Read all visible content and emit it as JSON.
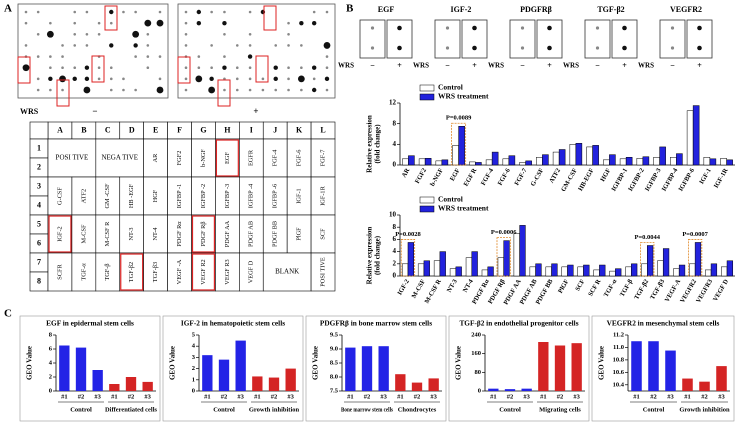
{
  "panel_a": {
    "label": "A",
    "wrs": "WRS",
    "minus": "−",
    "plus": "+"
  },
  "table": {
    "columns": [
      "A",
      "B",
      "C",
      "D",
      "E",
      "F",
      "G",
      "H",
      "I",
      "J",
      "K",
      "L"
    ],
    "rows": [
      "1",
      "2",
      "3",
      "4",
      "5",
      "6",
      "7",
      "8"
    ],
    "row_pairs": [
      [
        "POSI TIVE",
        null,
        "NEGA TIVE",
        null,
        "AR",
        "FGF2",
        "b-NGF",
        {
          "text": "EGF",
          "highlight": true
        },
        "EGFR",
        "FGF-4",
        "FGF-6",
        "FGF-7"
      ],
      [
        "G-CSF",
        "ATF2",
        "GM -CSF",
        "HB -EGF",
        "HGF",
        "IGFBP -1",
        "IGFBP -2",
        "IGFBP -3",
        "IGFBP -4",
        "IGFBP -6",
        "IGF-1",
        "IGF-1R"
      ],
      [
        {
          "text": "IGF-2",
          "highlight": true
        },
        "M-CSF",
        "M-CSF R",
        "NT-3",
        "NT-4",
        "PDGF Rα",
        {
          "text": "PDGF Rβ",
          "highlight": true
        },
        "PDGF AA",
        "PDGF AB",
        "PDGF BB",
        "PlGF",
        "SCF"
      ],
      [
        "SCFR",
        "TGF-α",
        "TGF-β",
        {
          "text": "TGF-β2",
          "highlight": true
        },
        "TGF-β3",
        "VEGF -A",
        {
          "text": "VEGF R2",
          "highlight": true
        },
        "VEGF R3",
        "VEGF D",
        "BLANK",
        null,
        "POSI TIVE"
      ]
    ]
  },
  "panel_b": {
    "label": "B",
    "wrs": "WRS",
    "minus": "−",
    "plus": "+",
    "blots": [
      "EGF",
      "IGF-2",
      "PDGFRβ",
      "TGF-β2",
      "VEGFR2"
    ]
  },
  "panel_c": {
    "label": "C"
  },
  "chart_data": [
    {
      "type": "bar",
      "ylabel": [
        "Relative expression",
        "(fold change)"
      ],
      "categories": [
        "AR",
        "FGF2",
        "b-NGF",
        "EGF",
        "EGF R",
        "FGF-4",
        "FGF-6",
        "FGF-7",
        "G-CSF",
        "ATF2",
        "GM-CSF",
        "HB-EGF",
        "HGF",
        "IGFBP-1",
        "IGFBP-2",
        "IGFBP-3",
        "IGFBP-4",
        "IGFBP-6",
        "IGF-1",
        "IGF-1R"
      ],
      "series": [
        {
          "name": "Control",
          "color": "#ffffff",
          "values": [
            1.2,
            1.2,
            0.8,
            3.8,
            0.6,
            1.0,
            1.2,
            0.5,
            1.5,
            2.5,
            4.0,
            3.5,
            1.0,
            1.2,
            1.3,
            1.5,
            1.5,
            10.5,
            1.5,
            1.3
          ]
        },
        {
          "name": "WRS treatment",
          "color": "#2222dd",
          "values": [
            1.8,
            1.3,
            1.0,
            7.5,
            0.5,
            2.5,
            1.8,
            0.8,
            2.0,
            3.0,
            4.2,
            3.8,
            2.0,
            1.5,
            1.6,
            3.5,
            2.2,
            11.5,
            1.2,
            1.0
          ]
        }
      ],
      "ylim": [
        0,
        12
      ],
      "yticks": [
        0,
        4,
        8,
        12
      ],
      "annotations": [
        {
          "text": "P=0.0089",
          "category": "EGF"
        }
      ]
    },
    {
      "type": "bar",
      "ylabel": [
        "Relative expression",
        "(fold change)"
      ],
      "categories": [
        "IGF-2",
        "M-CSF",
        "M-CSF R",
        "NT-3",
        "NT-4",
        "PDGF Rα",
        "PDGF Rβ",
        "PDGF AA",
        "PDGF AB",
        "PDGF BB",
        "PlGF",
        "SCF",
        "SCF R",
        "TGF-α",
        "TGF-β",
        "TGF-β2",
        "TGF-β3",
        "VEGF-A",
        "VEGFR2",
        "VEGFR3",
        "VEGF D"
      ],
      "series": [
        {
          "name": "Control",
          "color": "#ffffff",
          "values": [
            2.0,
            2.0,
            2.5,
            1.2,
            3.0,
            1.0,
            3.0,
            7.0,
            1.5,
            1.5,
            1.5,
            1.5,
            1.0,
            0.8,
            1.5,
            2.0,
            2.5,
            1.2,
            2.0,
            1.0,
            1.5
          ]
        },
        {
          "name": "WRS treatment",
          "color": "#2222dd",
          "values": [
            5.5,
            2.5,
            4.0,
            1.5,
            4.0,
            1.5,
            5.8,
            8.3,
            2.0,
            2.0,
            1.8,
            1.8,
            1.8,
            1.2,
            2.0,
            5.0,
            4.5,
            1.8,
            5.5,
            2.0,
            2.5
          ]
        }
      ],
      "ylim": [
        0,
        10
      ],
      "yticks": [
        0,
        2,
        4,
        6,
        8,
        10
      ],
      "annotations": [
        {
          "text": "P=0.0028",
          "category": "IGF-2"
        },
        {
          "text": "P=0.0006",
          "category": "PDGF Rβ"
        },
        {
          "text": "P=0.0044",
          "category": "TGF-β2"
        },
        {
          "text": "P=0.0007",
          "category": "VEGFR2"
        }
      ]
    },
    {
      "type": "geo",
      "title": "EGF in epidermal stem cells",
      "ylabel": "GEO Value",
      "ylim": [
        0,
        8
      ],
      "yticks": [
        0,
        2,
        4,
        6,
        8
      ],
      "series": [
        {
          "name": "Control",
          "color": "#2323e6",
          "categories": [
            "#1",
            "#2",
            "#3"
          ],
          "values": [
            6.5,
            6.2,
            3.0
          ]
        },
        {
          "name": "Differentiated cells",
          "color": "#d42424",
          "categories": [
            "#1",
            "#2",
            "#3"
          ],
          "values": [
            1.0,
            2.0,
            1.3
          ]
        }
      ]
    },
    {
      "type": "geo",
      "title": "IGF-2 in hematopoietic stem cells",
      "ylabel": "GEO Value",
      "ylim": [
        0,
        5
      ],
      "yticks": [
        0,
        1,
        2,
        3,
        4,
        5
      ],
      "series": [
        {
          "name": "Control",
          "color": "#2323e6",
          "categories": [
            "#1",
            "#2",
            "#3"
          ],
          "values": [
            3.2,
            2.8,
            4.5
          ]
        },
        {
          "name": "Growth inhibition",
          "color": "#d42424",
          "categories": [
            "#1",
            "#2",
            "#3"
          ],
          "values": [
            1.3,
            1.2,
            2.0
          ]
        }
      ]
    },
    {
      "type": "geo",
      "title": "PDGFRβ in bone marrow stem cells",
      "ylabel": "GEO Value",
      "ylim": [
        7.5,
        9.5
      ],
      "yticks": [
        7.5,
        {
          "value": 8,
          "label": "8.0"
        },
        8.5,
        {
          "value": 9,
          "label": "9.0"
        },
        9.5
      ],
      "series": [
        {
          "name": "Bone marrow stem cells",
          "color": "#2323e6",
          "categories": [
            "#1",
            "#2",
            "#3"
          ],
          "values": [
            9.05,
            9.1,
            9.1
          ]
        },
        {
          "name": "Chondrocytes",
          "color": "#d42424",
          "categories": [
            "#1",
            "#2",
            "#3"
          ],
          "values": [
            8.1,
            7.8,
            7.95
          ]
        }
      ]
    },
    {
      "type": "geo",
      "title": "TGF-β2 in endothelial progenitor cells",
      "ylabel": "GEO Value",
      "ylim": [
        0,
        240
      ],
      "yticks": [
        0,
        80,
        160,
        240
      ],
      "series": [
        {
          "name": "Control",
          "color": "#2323e6",
          "categories": [
            "#1",
            "#2",
            "#3"
          ],
          "values": [
            10,
            8,
            10
          ]
        },
        {
          "name": "Migrating cells",
          "color": "#d42424",
          "categories": [
            "#1",
            "#2",
            "#3"
          ],
          "values": [
            210,
            195,
            205
          ]
        }
      ]
    },
    {
      "type": "geo",
      "title": "VEGFR2 in mesenchymal stem cells",
      "ylabel": "GEO Value",
      "ylim": [
        10.3,
        11.2
      ],
      "yticks": [
        10.4,
        10.6,
        10.8,
        {
          "value": 11,
          "label": "11.0"
        },
        11.2
      ],
      "series": [
        {
          "name": "Control",
          "color": "#2323e6",
          "categories": [
            "#1",
            "#2",
            "#3"
          ],
          "values": [
            11.1,
            11.1,
            10.95
          ]
        },
        {
          "name": "Growth inhibition",
          "color": "#d42424",
          "categories": [
            "#1",
            "#2",
            "#3"
          ],
          "values": [
            10.5,
            10.45,
            10.7
          ]
        }
      ]
    }
  ]
}
